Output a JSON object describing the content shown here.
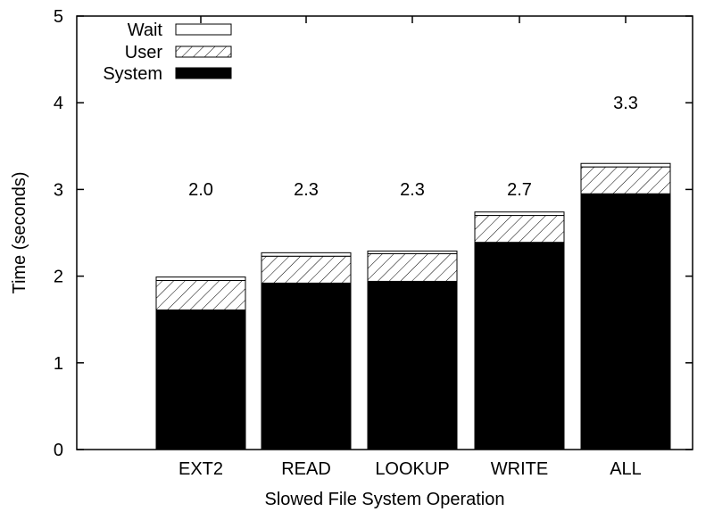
{
  "chart_data": {
    "type": "bar",
    "stacked": true,
    "title": "",
    "xlabel": "Slowed File System Operation",
    "ylabel": "Time (seconds)",
    "ylim": [
      0,
      5
    ],
    "yticks": [
      "0",
      "1",
      "2",
      "3",
      "4",
      "5"
    ],
    "grid": false,
    "legend_position": "top-left",
    "categories": [
      "EXT2",
      "READ",
      "LOOKUP",
      "WRITE",
      "ALL"
    ],
    "series": [
      {
        "name": "System",
        "values": [
          1.61,
          1.92,
          1.94,
          2.39,
          2.95
        ],
        "fill": "solid",
        "color": "#000000"
      },
      {
        "name": "User",
        "values": [
          0.34,
          0.31,
          0.32,
          0.31,
          0.31
        ],
        "fill": "hatch",
        "color": "#000000"
      },
      {
        "name": "Wait",
        "values": [
          0.04,
          0.04,
          0.03,
          0.04,
          0.04
        ],
        "fill": "empty",
        "color": "#ffffff"
      }
    ],
    "legend_order": [
      "Wait",
      "User",
      "System"
    ],
    "total_labels": [
      "2.0",
      "2.3",
      "2.3",
      "2.7",
      "3.3"
    ]
  }
}
